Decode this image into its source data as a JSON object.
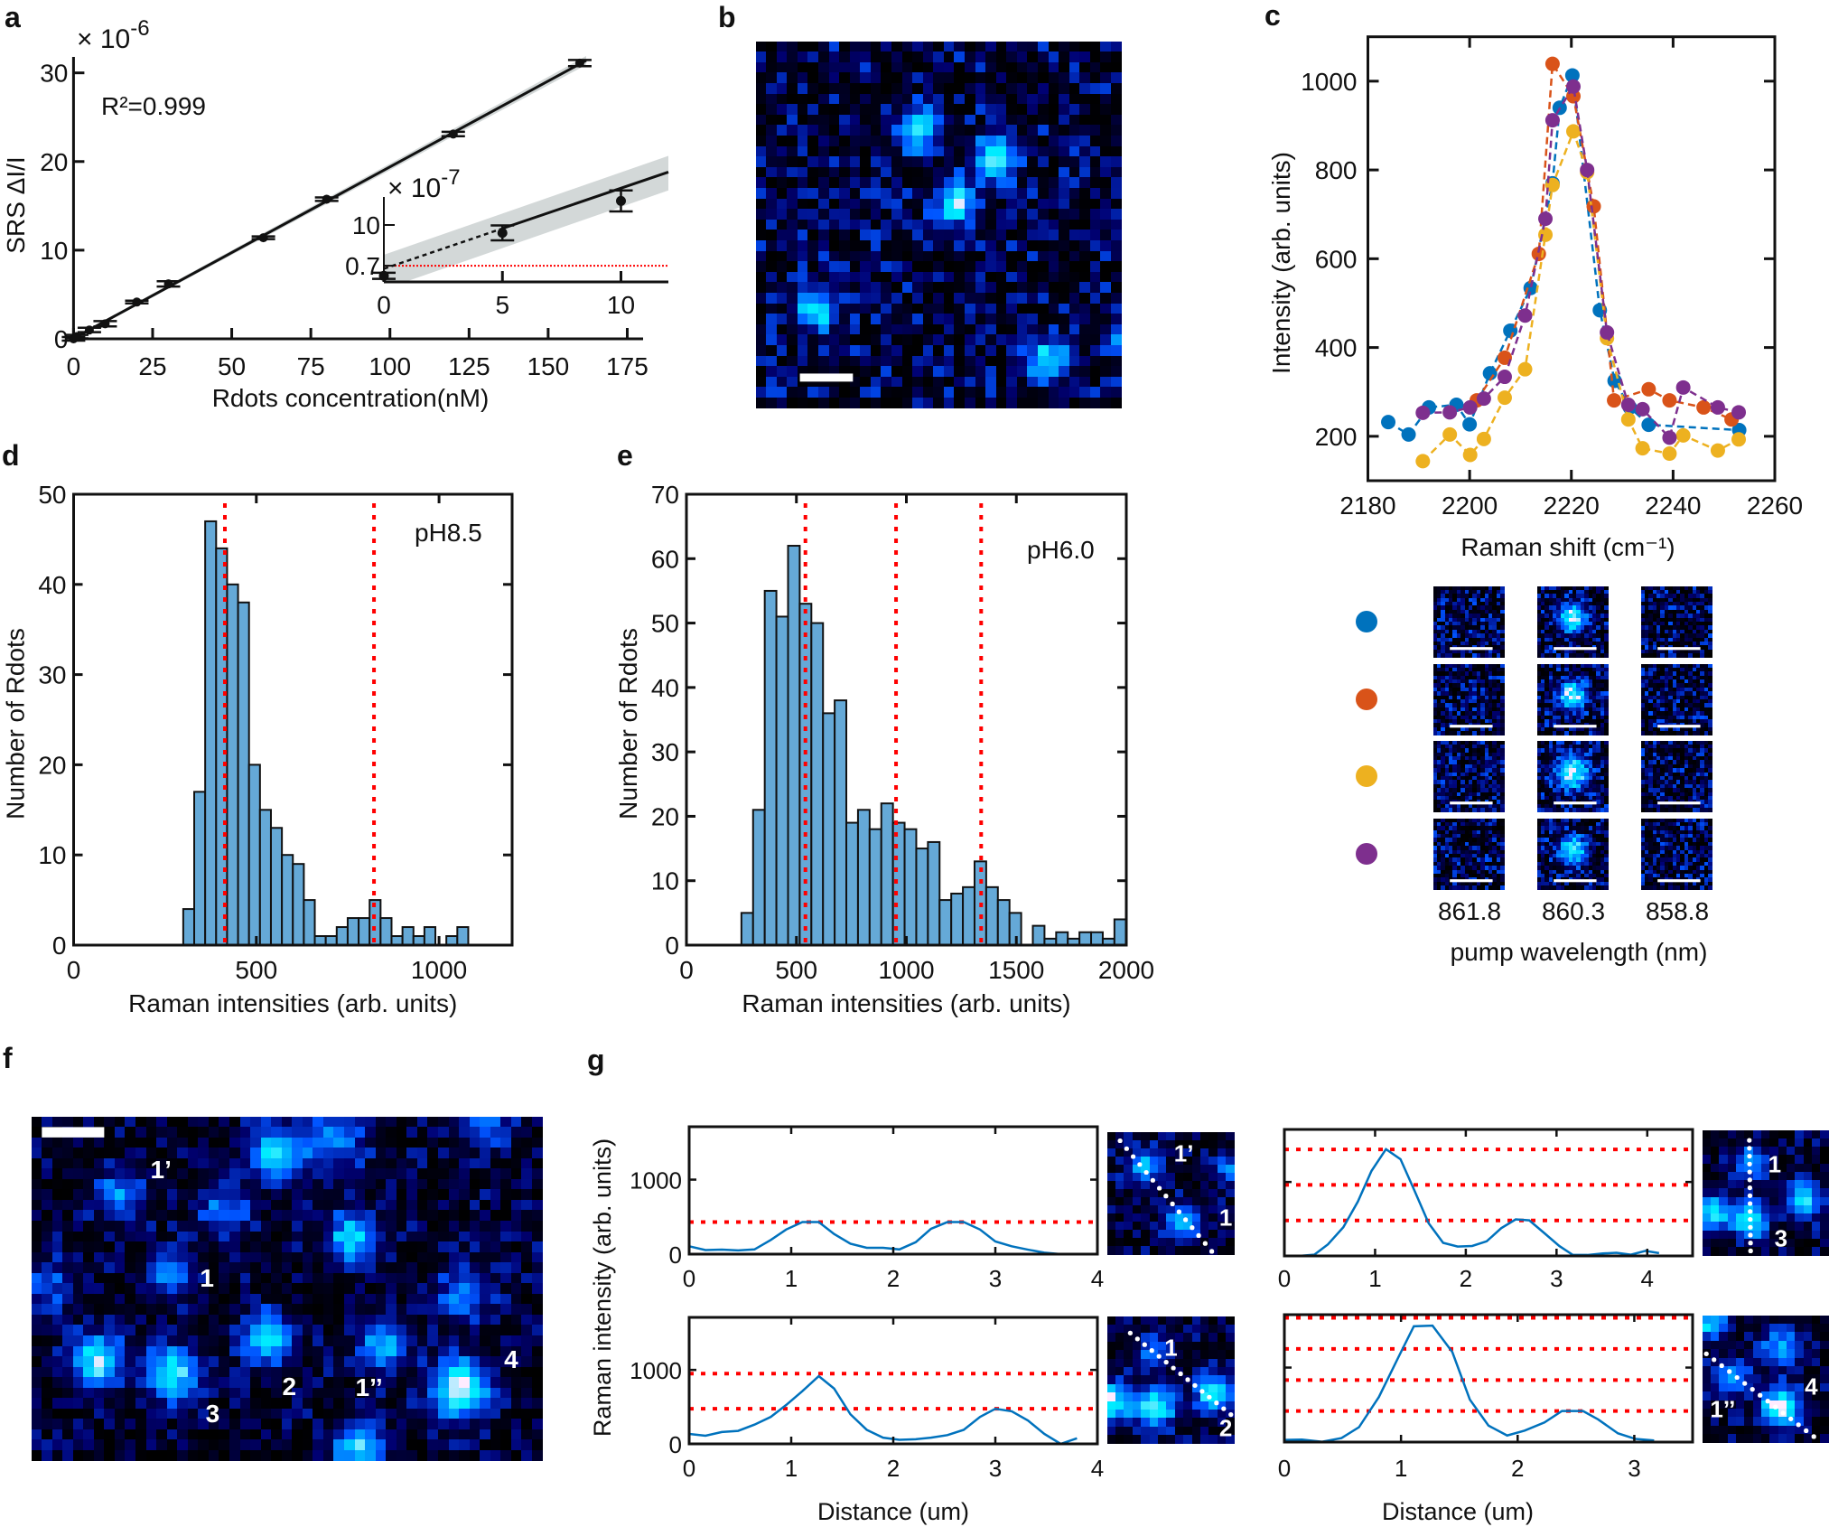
{
  "panel_labels": {
    "a": "a",
    "b": "b",
    "c": "c",
    "d": "d",
    "e": "e",
    "f": "f",
    "g": "g"
  },
  "colors": {
    "blue": "#0072BD",
    "orange": "#D95319",
    "yellow": "#EDB120",
    "purple": "#7E2F8E",
    "histogram_fill": "#65A9D7",
    "reference_line": "#FF0000",
    "fit_band": "#D3D8D8"
  },
  "image_labels": {
    "f": [
      "1’",
      "1",
      "3",
      "2",
      "1’’",
      "4"
    ],
    "g_thumbs": [
      [
        "1’",
        "1"
      ],
      [
        "1",
        "2"
      ],
      [
        "1",
        "3"
      ],
      [
        "4",
        "1’’"
      ]
    ]
  },
  "chart_data": [
    {
      "panel": "a",
      "type": "scatter",
      "xlabel": "Rdots concentration(nM)",
      "ylabel": "SRS ΔI/I",
      "y_multiplier": {
        "base": "× 10",
        "exp": "-6"
      },
      "annotation": "R²=0.999",
      "xlim": [
        0,
        180
      ],
      "ylim": [
        0,
        31.8
      ],
      "xticks": [
        0,
        25,
        50,
        75,
        100,
        125,
        150,
        175
      ],
      "yticks": [
        0,
        10,
        20,
        30
      ],
      "points": [
        {
          "x": 0,
          "y": 0,
          "yerr": 0.2
        },
        {
          "x": 1,
          "y": 0.25,
          "yerr": 0.2
        },
        {
          "x": 5,
          "y": 1.0,
          "yerr": 0.25
        },
        {
          "x": 10,
          "y": 1.7,
          "yerr": 0.3
        },
        {
          "x": 20,
          "y": 4.15,
          "yerr": 0.15
        },
        {
          "x": 30,
          "y": 6.2,
          "yerr": 0.3
        },
        {
          "x": 60,
          "y": 11.4,
          "yerr": 0.15
        },
        {
          "x": 80,
          "y": 15.75,
          "yerr": 0.2
        },
        {
          "x": 120,
          "y": 23.1,
          "yerr": 0.25
        },
        {
          "x": 160,
          "y": 31.1,
          "yerr": 0.35
        }
      ],
      "fit": {
        "slope": 0.1935,
        "intercept": 0.05,
        "x_range": [
          0,
          162
        ]
      },
      "inset": {
        "y_multiplier": {
          "base": "× 10",
          "exp": "-7"
        },
        "xlim": [
          0,
          12
        ],
        "ylim": [
          -3,
          16.4
        ],
        "xticks": [
          0,
          5,
          10
        ],
        "yticks": [
          0.7,
          10
        ],
        "ytick_labels": [
          "0.7",
          "10"
        ],
        "points": [
          {
            "x": 0,
            "y": -1.6,
            "yerr": 0.7
          },
          {
            "x": 5,
            "y": 8.2,
            "yerr": 1.7
          },
          {
            "x": 10,
            "y": 15.5,
            "yerr": 2.4
          }
        ],
        "fit": {
          "slope": 1.84,
          "intercept": 0.0,
          "x_range": [
            0,
            12
          ],
          "dashed_until": 5
        },
        "detection_limit": 0.7
      }
    },
    {
      "panel": "c",
      "type": "line",
      "xlabel": "Raman shift (cm⁻¹)",
      "ylabel": "Intensity (arb. units)",
      "xlim": [
        2180,
        2260
      ],
      "ylim": [
        100,
        1100
      ],
      "xticks": [
        2180,
        2200,
        2220,
        2240,
        2260
      ],
      "yticks": [
        200,
        400,
        600,
        800,
        1000
      ],
      "grid": false,
      "series": [
        {
          "color": "#0072BD",
          "x": [
            2184,
            2188,
            2192,
            2197.4,
            2200,
            2204,
            2208,
            2212,
            2216.3,
            2217.7,
            2220.2,
            2225.6,
            2228.5,
            2231.5,
            2235.2,
            2253
          ],
          "y": [
            232,
            204,
            265,
            271,
            227,
            342,
            438,
            534,
            770,
            940,
            1013,
            484,
            325,
            265,
            226,
            214
          ]
        },
        {
          "color": "#D95319",
          "x": [
            2201.4,
            2206.9,
            2213.6,
            2216.3,
            2220.4,
            2224.4,
            2228.4,
            2235.2,
            2239.3,
            2246,
            2251.5
          ],
          "y": [
            281,
            377,
            611,
            1039,
            966,
            718,
            281,
            306,
            281,
            265,
            238
          ]
        },
        {
          "color": "#EDB120",
          "x": [
            2190.8,
            2196.1,
            2200.1,
            2202.8,
            2206.9,
            2210.9,
            2214.9,
            2216.3,
            2220.4,
            2223.1,
            2227,
            2231.2,
            2234,
            2239.3,
            2242,
            2248.8,
            2252.9
          ],
          "y": [
            144,
            204,
            158,
            194,
            287,
            351,
            654,
            766,
            887,
            795,
            421,
            238,
            173,
            161,
            202,
            168,
            193
          ]
        },
        {
          "color": "#7E2F8E",
          "x": [
            2190.8,
            2196.1,
            2200.1,
            2202.8,
            2206.9,
            2210.9,
            2214.9,
            2216.3,
            2220.4,
            2223.1,
            2227,
            2231.2,
            2234,
            2239.3,
            2242,
            2248.8,
            2252.9
          ],
          "y": [
            253,
            254,
            265,
            285,
            334,
            472,
            690,
            912,
            988,
            800,
            434,
            271,
            261,
            197,
            310,
            265,
            254
          ]
        }
      ],
      "image_grid": {
        "row_colors": [
          "#0072BD",
          "#D95319",
          "#EDB120",
          "#7E2F8E"
        ],
        "column_labels": [
          "861.8",
          "860.3",
          "858.8"
        ],
        "xlabel": "pump wavelength (nm)"
      }
    },
    {
      "panel": "d",
      "type": "bar",
      "xlabel": "Raman intensities (arb. units)",
      "ylabel": "Number of Rdots",
      "annotation": "pH8.5",
      "xlim": [
        0,
        1200
      ],
      "ylim": [
        0,
        50
      ],
      "xticks": [
        0,
        500,
        1000
      ],
      "yticks": [
        0,
        10,
        20,
        30,
        40,
        50
      ],
      "bin_start": 300,
      "bin_width": 30,
      "counts": [
        4,
        17,
        47,
        44,
        40,
        38,
        20,
        15,
        13,
        10,
        9,
        5,
        1,
        1,
        2,
        3,
        3,
        5,
        3,
        1,
        2,
        1,
        2,
        0,
        1,
        2
      ],
      "reference_lines": [
        414,
        822
      ]
    },
    {
      "panel": "e",
      "type": "bar",
      "xlabel": "Raman intensities (arb. units)",
      "ylabel": "Number of Rdots",
      "annotation": "pH6.0",
      "xlim": [
        0,
        2000
      ],
      "ylim": [
        0,
        70
      ],
      "xticks": [
        0,
        500,
        1000,
        1500,
        2000
      ],
      "yticks": [
        0,
        10,
        20,
        30,
        40,
        50,
        60,
        70
      ],
      "bin_start": 250,
      "bin_width": 53,
      "counts": [
        5,
        21,
        55,
        51,
        62,
        53,
        50,
        36,
        38,
        19,
        21,
        18,
        22,
        19,
        18,
        15,
        16,
        7,
        8,
        9,
        13,
        9,
        7,
        5,
        0,
        3,
        1,
        2,
        1,
        2,
        2,
        1,
        4
      ],
      "reference_lines": [
        541,
        953,
        1340
      ]
    },
    {
      "panel": "g",
      "type": "line",
      "ylabel": "Raman intensity (arb. units)",
      "xlabel": "Distance (um)",
      "profiles": [
        {
          "xlim": [
            0,
            4
          ],
          "ylim": [
            0,
            1710
          ],
          "xticks": [
            0,
            1,
            2,
            3,
            4
          ],
          "yticks": [
            0,
            1000
          ],
          "show_ytick_labels": true,
          "x": [
            0,
            0.16,
            0.32,
            0.48,
            0.64,
            0.8,
            0.95,
            1.11,
            1.27,
            1.42,
            1.58,
            1.74,
            1.9,
            2.06,
            2.22,
            2.37,
            2.53,
            2.69,
            2.85,
            3.0,
            3.16,
            3.32,
            3.48,
            3.64
          ],
          "y": [
            105,
            55,
            60,
            50,
            63,
            190,
            330,
            430,
            430,
            270,
            140,
            85,
            85,
            63,
            160,
            340,
            430,
            430,
            330,
            170,
            105,
            60,
            20,
            0
          ],
          "reference_lines": [
            430
          ]
        },
        {
          "xlim": [
            0,
            4
          ],
          "ylim": [
            0,
            1710
          ],
          "xticks": [
            0,
            1,
            2,
            3,
            4
          ],
          "yticks": [
            0,
            1000
          ],
          "show_ytick_labels": true,
          "x": [
            0,
            0.16,
            0.32,
            0.48,
            0.64,
            0.8,
            0.95,
            1.11,
            1.27,
            1.42,
            1.58,
            1.74,
            1.9,
            2.06,
            2.22,
            2.37,
            2.53,
            2.69,
            2.85,
            3.0,
            3.16,
            3.32,
            3.48,
            3.64,
            3.8
          ],
          "y": [
            135,
            110,
            160,
            176,
            260,
            365,
            525,
            714,
            916,
            748,
            400,
            190,
            84,
            55,
            63,
            84,
            118,
            190,
            365,
            475,
            441,
            315,
            135,
            0,
            76
          ],
          "reference_lines": [
            950,
            475
          ]
        },
        {
          "xlim": [
            0,
            4.5
          ],
          "ylim": [
            0,
            1710
          ],
          "xticks": [
            0,
            1,
            2,
            3,
            4
          ],
          "yticks": [
            0,
            1000
          ],
          "show_ytick_labels": false,
          "x": [
            0,
            0.16,
            0.33,
            0.48,
            0.65,
            0.81,
            0.96,
            1.12,
            1.28,
            1.43,
            1.59,
            1.75,
            1.91,
            2.07,
            2.23,
            2.39,
            2.55,
            2.7,
            2.87,
            3.03,
            3.18,
            3.34,
            3.51,
            3.66,
            3.82,
            3.98,
            4.13
          ],
          "y": [
            0,
            0,
            17,
            156,
            388,
            734,
            1148,
            1443,
            1308,
            895,
            443,
            177,
            127,
            135,
            198,
            375,
            494,
            481,
            304,
            135,
            13,
            13,
            34,
            42,
            17,
            68,
            38
          ],
          "reference_lines": [
            1440,
            960,
            480
          ]
        },
        {
          "xlim": [
            0,
            3.5
          ],
          "ylim": [
            0,
            1710
          ],
          "xticks": [
            0,
            1,
            2,
            3
          ],
          "yticks": [
            0,
            1000
          ],
          "show_ytick_labels": false,
          "x": [
            0,
            0.15,
            0.32,
            0.49,
            0.64,
            0.81,
            0.98,
            1.11,
            1.27,
            1.44,
            1.59,
            1.75,
            1.91,
            2.06,
            2.23,
            2.38,
            2.56,
            2.69,
            2.86,
            3.01,
            3.17
          ],
          "y": [
            29,
            33,
            4,
            54,
            200,
            604,
            1146,
            1554,
            1563,
            1208,
            571,
            221,
            88,
            154,
            263,
            417,
            417,
            304,
            117,
            42,
            21
          ],
          "reference_lines": [
            1667,
            1250,
            833,
            417
          ]
        }
      ]
    }
  ]
}
